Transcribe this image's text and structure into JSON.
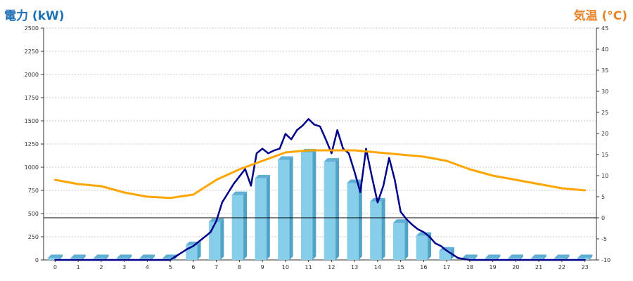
{
  "chart_data": {
    "type": "bar",
    "left_axis_label": "電力 (kW)",
    "right_axis_label": "気温 (°C)",
    "categories": [
      "0",
      "1",
      "2",
      "3",
      "4",
      "5",
      "6",
      "7",
      "8",
      "9",
      "10",
      "11",
      "12",
      "13",
      "14",
      "15",
      "16",
      "17",
      "18",
      "19",
      "20",
      "21",
      "22",
      "23"
    ],
    "left_ylim": [
      0,
      2500
    ],
    "left_ticks": [
      "0",
      "250",
      "500",
      "750",
      "1000",
      "1250",
      "1500",
      "1750",
      "2000",
      "2250",
      "2500"
    ],
    "right_ylim": [
      -10,
      45
    ],
    "right_ticks": [
      "-10",
      "-5",
      "0",
      "5",
      "10",
      "15",
      "20",
      "25",
      "30",
      "35",
      "40",
      "45"
    ],
    "grid": true,
    "series": [
      {
        "kind": "bar",
        "axis": "left",
        "values": [
          20,
          20,
          20,
          20,
          20,
          20,
          160,
          410,
          700,
          880,
          1080,
          1160,
          1060,
          830,
          630,
          400,
          260,
          100,
          20,
          20,
          20,
          20,
          20,
          20
        ]
      },
      {
        "kind": "line",
        "axis": "left",
        "x": [
          0,
          0.5,
          1,
          1.5,
          2,
          2.5,
          3,
          3.5,
          4,
          4.5,
          5,
          5.25,
          5.5,
          5.75,
          6,
          6.25,
          6.5,
          6.75,
          7,
          7.25,
          7.5,
          7.75,
          8,
          8.25,
          8.5,
          8.75,
          9,
          9.25,
          9.5,
          9.75,
          10,
          10.25,
          10.5,
          10.75,
          11,
          11.25,
          11.5,
          11.75,
          12,
          12.25,
          12.5,
          12.75,
          13,
          13.25,
          13.5,
          13.75,
          14,
          14.25,
          14.5,
          14.75,
          15,
          15.25,
          15.5,
          15.75,
          16,
          16.25,
          16.5,
          16.75,
          17,
          17.25,
          17.5,
          18,
          18.5,
          19,
          19.5,
          20,
          20.5,
          21,
          21.5,
          22,
          22.5,
          23
        ],
        "values": [
          0,
          0,
          0,
          0,
          0,
          0,
          0,
          0,
          0,
          0,
          0,
          40,
          80,
          120,
          150,
          200,
          250,
          300,
          420,
          620,
          720,
          820,
          900,
          980,
          800,
          1150,
          1200,
          1150,
          1180,
          1200,
          1360,
          1300,
          1400,
          1450,
          1520,
          1460,
          1440,
          1300,
          1150,
          1400,
          1200,
          1150,
          950,
          730,
          1200,
          900,
          620,
          800,
          1100,
          860,
          520,
          440,
          380,
          330,
          300,
          250,
          180,
          150,
          100,
          60,
          20,
          0,
          0,
          0,
          0,
          0,
          0,
          0,
          0,
          0,
          0,
          0
        ]
      },
      {
        "kind": "line",
        "axis": "right",
        "x": [
          0,
          1,
          2,
          3,
          4,
          5,
          6,
          7,
          8,
          9,
          10,
          11,
          12,
          13,
          14,
          15,
          16,
          17,
          18,
          19,
          20,
          21,
          22,
          23
        ],
        "values": [
          9,
          8,
          7.5,
          6,
          5,
          4.7,
          5.5,
          9,
          11.5,
          13.5,
          15.5,
          16,
          16,
          16,
          15.5,
          15,
          14.5,
          13.5,
          11.5,
          10,
          9,
          8,
          7,
          6.5
        ]
      }
    ],
    "colors": {
      "bar_fill": "#87ceeb",
      "bar_side": "#4fa3c7",
      "bar_top": "#5fb0d4",
      "power_line": "#00008b",
      "temp_line": "#ffa500",
      "left_label": "#1f6fb4",
      "right_label": "#e8852a",
      "zero_line": "#000000",
      "grid": "#bbbbbb"
    }
  }
}
